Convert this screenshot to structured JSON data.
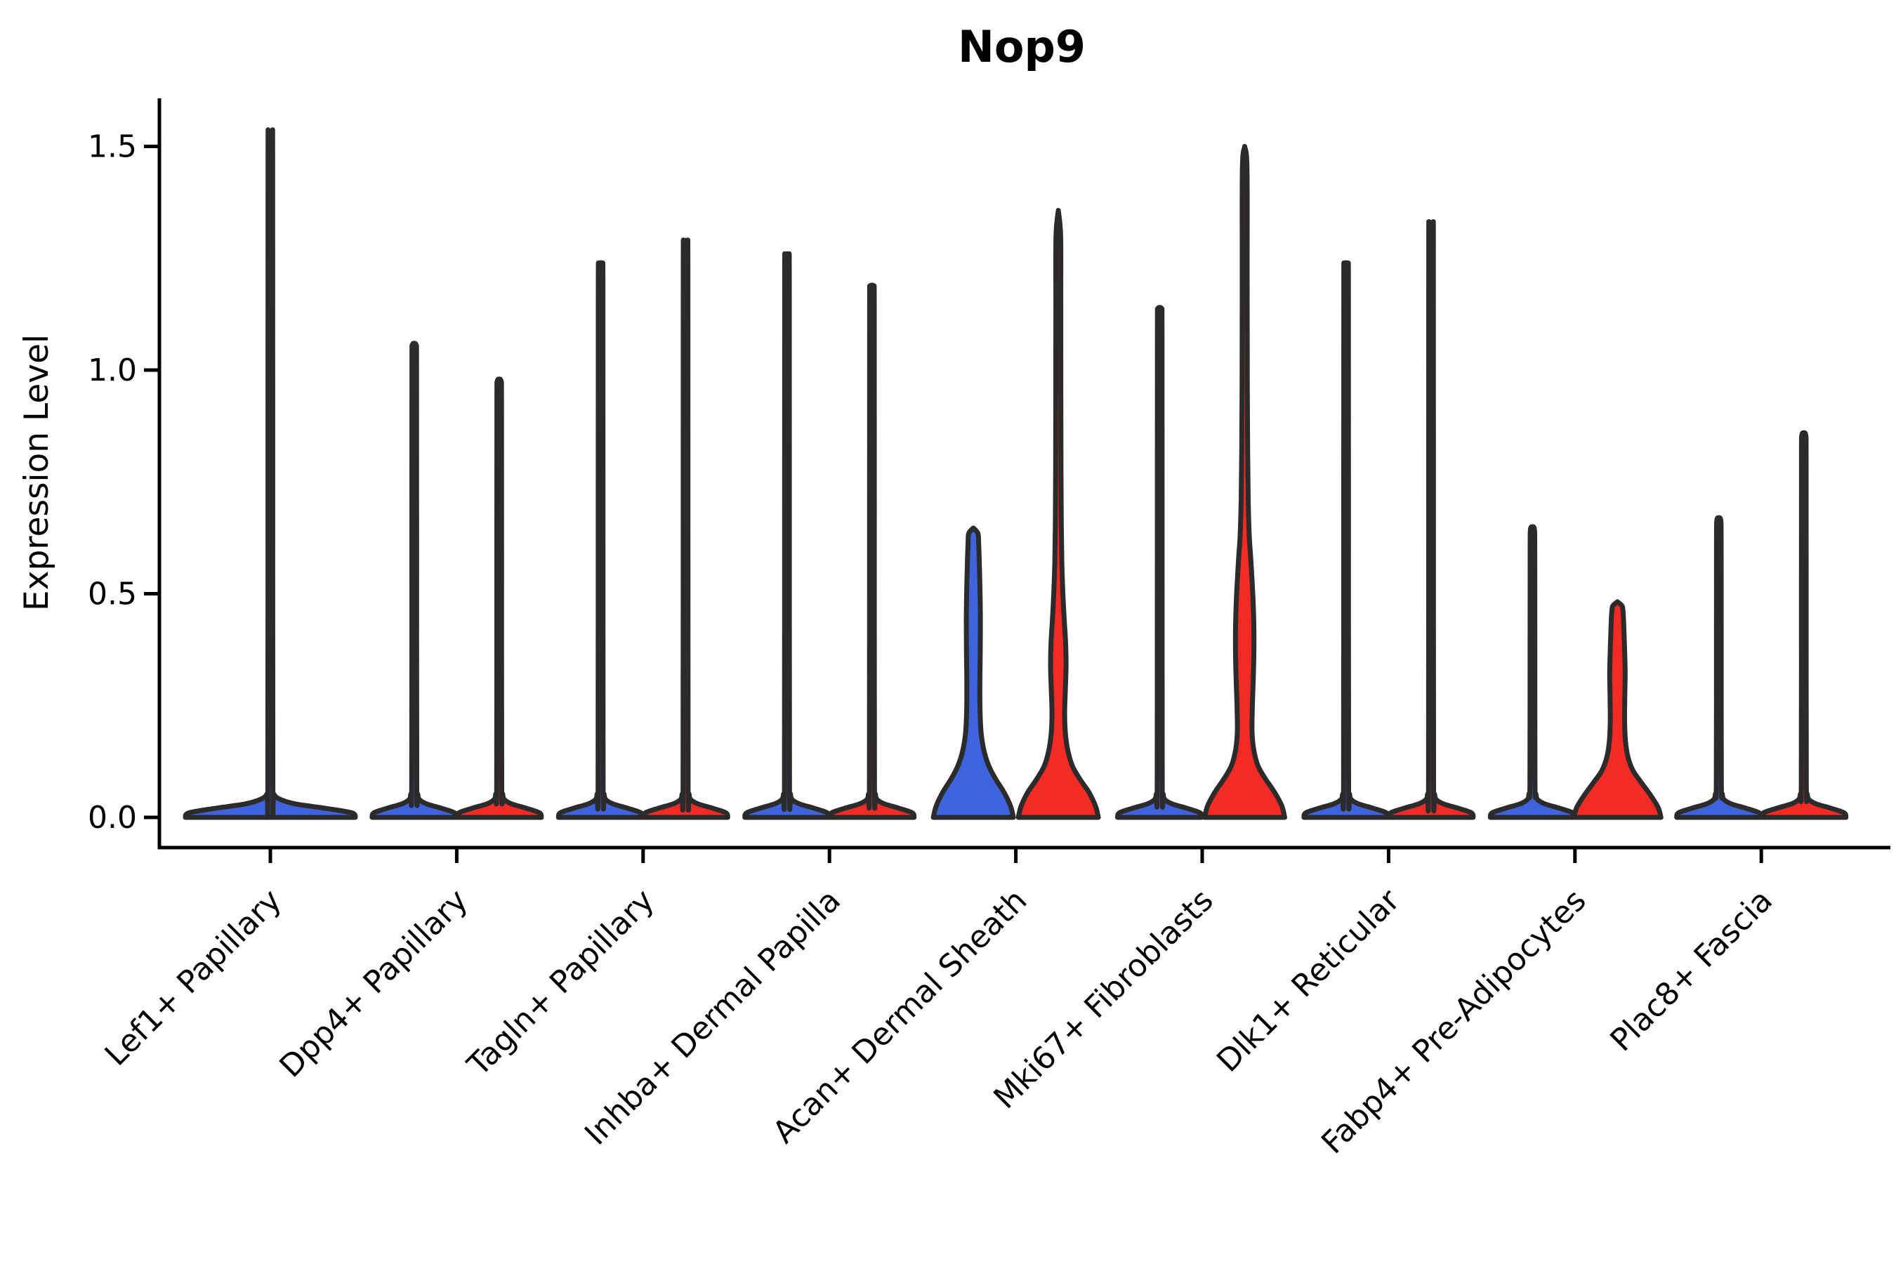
{
  "figure": {
    "title": "Nop9",
    "y_axis": {
      "label": "Expression Level",
      "tick_labels": [
        "0.0",
        "0.5",
        "1.0",
        "1.5"
      ],
      "tick_values": [
        0,
        0.5,
        1.0,
        1.5
      ]
    }
  },
  "colors": {
    "group_blue_fill": "#3E63DD",
    "group_red_fill": "#F32B24",
    "violin_outline": "#2B2B2B",
    "axis": "#000000",
    "background": "#FFFFFF"
  },
  "chart_data": {
    "type": "violin",
    "title": "Nop9",
    "xlabel": "",
    "ylabel": "Expression Level",
    "ylim": [
      -0.06,
      1.61
    ],
    "yticks": [
      0,
      0.5,
      1.0,
      1.5
    ],
    "grid": false,
    "legend": "none",
    "categories": [
      "Lef1+ Papillary",
      "Dpp4+ Papillary",
      "Tagln+ Papillary",
      "Inhba+ Dermal Papilla",
      "Acan+ Dermal Sheath",
      "Mki67+ Fibroblasts",
      "Dlk1+ Reticular",
      "Fabp4+ Pre-Adipocytes",
      "Plac8+ Fascia"
    ],
    "series": [
      {
        "category": "Lef1+ Papillary",
        "violins": [
          {
            "side": "center",
            "group": "blue",
            "max": 1.53,
            "filled": false,
            "base_halfwidth": 121
          }
        ]
      },
      {
        "category": "Dpp4+ Papillary",
        "violins": [
          {
            "side": "left",
            "group": "blue",
            "max": 1.06,
            "filled": false,
            "base_halfwidth": 60
          },
          {
            "side": "right",
            "group": "red",
            "max": 0.98,
            "filled": false,
            "base_halfwidth": 60
          }
        ]
      },
      {
        "category": "Tagln+ Papillary",
        "violins": [
          {
            "side": "left",
            "group": "blue",
            "max": 1.24,
            "filled": false,
            "base_halfwidth": 60
          },
          {
            "side": "right",
            "group": "red",
            "max": 1.29,
            "filled": false,
            "base_halfwidth": 60
          }
        ]
      },
      {
        "category": "Inhba+ Dermal Papilla",
        "violins": [
          {
            "side": "left",
            "group": "blue",
            "max": 1.26,
            "filled": false,
            "base_halfwidth": 60
          },
          {
            "side": "right",
            "group": "red",
            "max": 1.19,
            "filled": false,
            "base_halfwidth": 60
          }
        ]
      },
      {
        "category": "Acan+ Dermal Sheath",
        "violins": [
          {
            "side": "left",
            "group": "blue",
            "max": 0.647,
            "filled": true,
            "base_halfwidth": 57,
            "profile": [
              [
                0,
                57
              ],
              [
                0.025,
                53
              ],
              [
                0.055,
                44
              ],
              [
                0.085,
                32
              ],
              [
                0.115,
                22
              ],
              [
                0.15,
                15
              ],
              [
                0.19,
                11
              ],
              [
                0.24,
                9.5
              ],
              [
                0.3,
                9.3
              ],
              [
                0.37,
                9.8
              ],
              [
                0.45,
                10
              ],
              [
                0.52,
                9.3
              ],
              [
                0.58,
                8.3
              ],
              [
                0.615,
                7.5
              ],
              [
                0.635,
                6.5
              ],
              [
                0.647,
                0
              ]
            ]
          },
          {
            "side": "right",
            "group": "red",
            "max": 1.357,
            "filled": true,
            "base_halfwidth": 57,
            "profile": [
              [
                0,
                57
              ],
              [
                0.025,
                53
              ],
              [
                0.055,
                44
              ],
              [
                0.085,
                31
              ],
              [
                0.115,
                20
              ],
              [
                0.15,
                13.5
              ],
              [
                0.19,
                10
              ],
              [
                0.235,
                9
              ],
              [
                0.285,
                10
              ],
              [
                0.335,
                11
              ],
              [
                0.385,
                10.5
              ],
              [
                0.44,
                8.5
              ],
              [
                0.5,
                6.5
              ],
              [
                0.57,
                5
              ],
              [
                0.66,
                4.2
              ],
              [
                0.78,
                3.8
              ],
              [
                0.95,
                3.6
              ],
              [
                1.15,
                3.5
              ],
              [
                1.3,
                3.3
              ],
              [
                1.357,
                0
              ]
            ]
          }
        ]
      },
      {
        "category": "Mki67+ Fibroblasts",
        "violins": [
          {
            "side": "left",
            "group": "blue",
            "max": 1.14,
            "filled": false,
            "base_halfwidth": 60
          },
          {
            "side": "right",
            "group": "red",
            "max": 1.5,
            "filled": true,
            "base_halfwidth": 57,
            "profile": [
              [
                0,
                57
              ],
              [
                0.025,
                53
              ],
              [
                0.055,
                43
              ],
              [
                0.085,
                30
              ],
              [
                0.115,
                19
              ],
              [
                0.15,
                13
              ],
              [
                0.19,
                10.5
              ],
              [
                0.24,
                10.8
              ],
              [
                0.3,
                12
              ],
              [
                0.36,
                13
              ],
              [
                0.43,
                13
              ],
              [
                0.5,
                11.5
              ],
              [
                0.57,
                9
              ],
              [
                0.63,
                6.5
              ],
              [
                0.71,
                5
              ],
              [
                0.82,
                4.2
              ],
              [
                0.97,
                3.7
              ],
              [
                1.2,
                3.5
              ],
              [
                1.45,
                3.3
              ],
              [
                1.5,
                0
              ]
            ]
          }
        ]
      },
      {
        "category": "Dlk1+ Reticular",
        "violins": [
          {
            "side": "left",
            "group": "blue",
            "max": 1.24,
            "filled": false,
            "base_halfwidth": 60
          },
          {
            "side": "right",
            "group": "red",
            "max": 1.33,
            "filled": false,
            "base_halfwidth": 60
          }
        ]
      },
      {
        "category": "Fabp4+ Pre-Adipocytes",
        "violins": [
          {
            "side": "left",
            "group": "blue",
            "max": 0.65,
            "filled": false,
            "base_halfwidth": 60
          },
          {
            "side": "right",
            "group": "red",
            "max": 0.482,
            "filled": true,
            "base_halfwidth": 62,
            "profile": [
              [
                0,
                62
              ],
              [
                0.022,
                58
              ],
              [
                0.05,
                47
              ],
              [
                0.08,
                33
              ],
              [
                0.105,
                22
              ],
              [
                0.135,
                15
              ],
              [
                0.17,
                11.5
              ],
              [
                0.215,
                10.2
              ],
              [
                0.27,
                10.5
              ],
              [
                0.325,
                11
              ],
              [
                0.385,
                10
              ],
              [
                0.43,
                9
              ],
              [
                0.46,
                8
              ],
              [
                0.473,
                6.5
              ],
              [
                0.482,
                0
              ]
            ]
          }
        ]
      },
      {
        "category": "Plac8+ Fascia",
        "violins": [
          {
            "side": "left",
            "group": "blue",
            "max": 0.67,
            "filled": false,
            "base_halfwidth": 60
          },
          {
            "side": "right",
            "group": "red",
            "max": 0.86,
            "filled": false,
            "base_halfwidth": 60
          }
        ]
      }
    ]
  }
}
